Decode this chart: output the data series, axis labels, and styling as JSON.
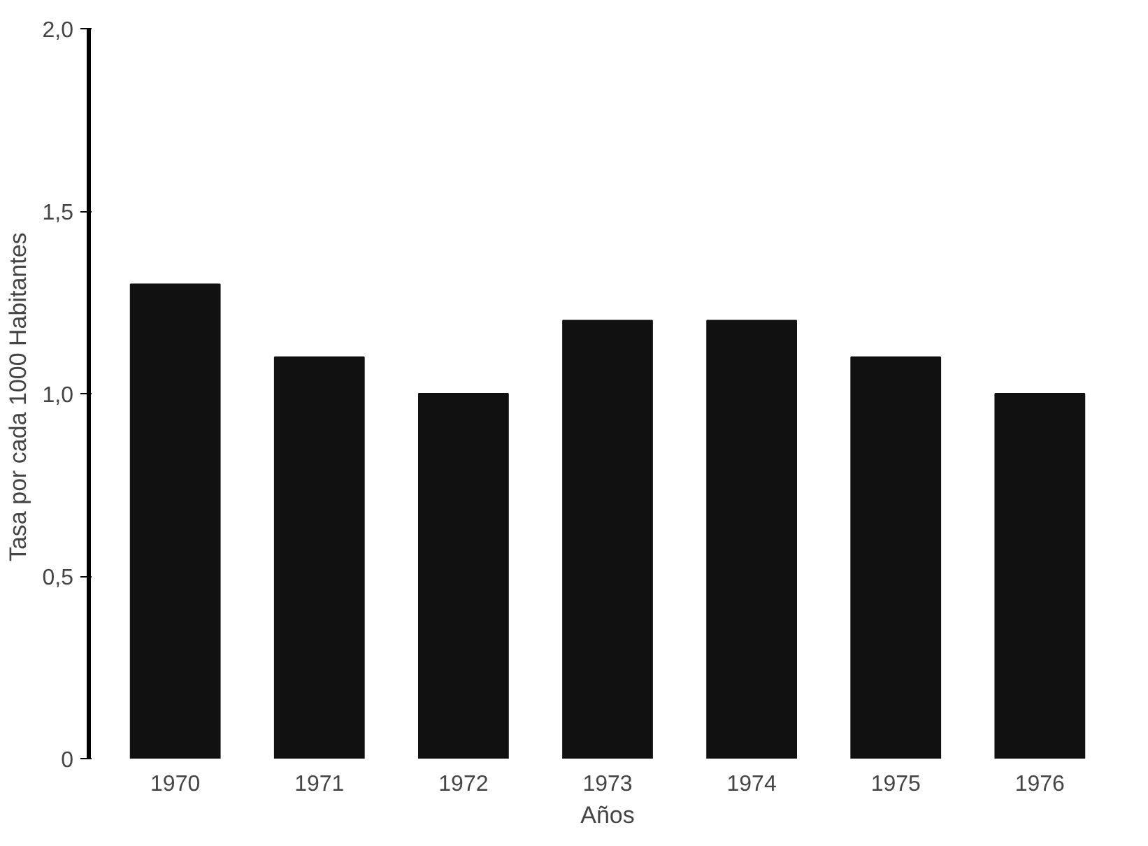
{
  "chart_data": {
    "type": "bar",
    "xlabel": "Años",
    "ylabel": "Tasa por cada 1000  Habitantes",
    "categories": [
      "1970",
      "1971",
      "1972",
      "1973",
      "1974",
      "1975",
      "1976"
    ],
    "values": [
      1.3,
      1.1,
      1.0,
      1.2,
      1.2,
      1.1,
      1.0
    ],
    "color": "#111111",
    "ylim": [
      0,
      2.0
    ],
    "yticks": [
      {
        "value": 0,
        "label": "0"
      },
      {
        "value": 0.5,
        "label": "0,5"
      },
      {
        "value": 1.0,
        "label": "1,0"
      },
      {
        "value": 1.5,
        "label": "1,5"
      },
      {
        "value": 2.0,
        "label": "2,0"
      }
    ],
    "grid": false
  }
}
